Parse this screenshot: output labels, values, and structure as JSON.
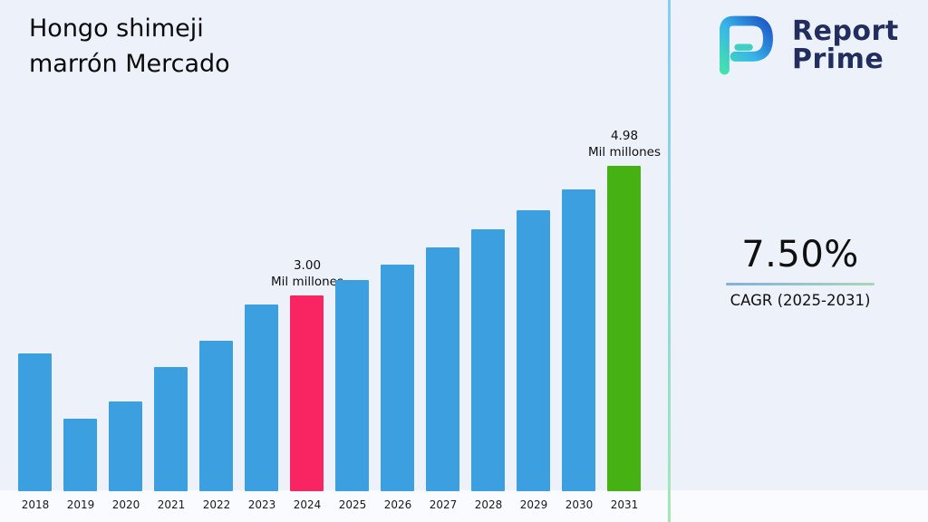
{
  "header": {
    "title_line1": "Hongo shimeji",
    "title_line2": "marrón Mercado",
    "brand": {
      "line1": "Report",
      "line2": "Prime"
    }
  },
  "stats": {
    "cagr_value": "7.50%",
    "cagr_label": "CAGR (2025-2031)"
  },
  "chart_data": {
    "type": "bar",
    "title": "Hongo shimeji marrón Mercado",
    "xlabel": "",
    "ylabel": "",
    "unit": "Mil millones",
    "ylim": [
      0,
      5.2
    ],
    "grid": false,
    "legend": "none",
    "categories": [
      "2018",
      "2019",
      "2020",
      "2021",
      "2022",
      "2023",
      "2024",
      "2025",
      "2026",
      "2027",
      "2028",
      "2029",
      "2030",
      "2031"
    ],
    "values": [
      2.11,
      1.11,
      1.37,
      1.9,
      2.3,
      2.86,
      3.0,
      3.23,
      3.47,
      3.73,
      4.01,
      4.31,
      4.63,
      4.98
    ],
    "bar_color": "#3b9fe0",
    "highlight_colors": {
      "2024": "#f92562",
      "2031": "#46b112"
    },
    "annotations": [
      {
        "category": "2024",
        "value_text": "3.00",
        "unit_text": "Mil millones"
      },
      {
        "category": "2031",
        "value_text": "4.98",
        "unit_text": "Mil millones"
      }
    ]
  }
}
